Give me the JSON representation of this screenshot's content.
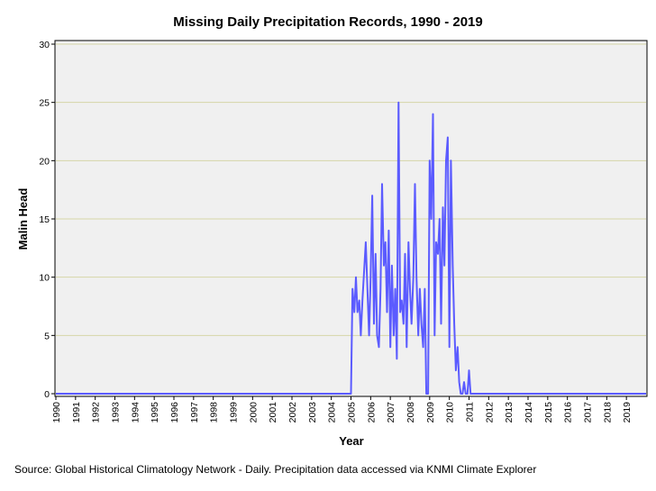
{
  "chart_data": {
    "type": "line",
    "title": "Missing Daily Precipitation Records, 1990 - 2019",
    "xlabel": "Year",
    "ylabel": "Malin Head",
    "ylim": [
      0,
      30
    ],
    "xlim": [
      1990,
      2020
    ],
    "yticks": [
      0,
      5,
      10,
      15,
      20,
      25,
      30
    ],
    "xtick_labels": [
      "1990",
      "1991",
      "1992",
      "1993",
      "1994",
      "1995",
      "1996",
      "1997",
      "1998",
      "1999",
      "2000",
      "2001",
      "2002",
      "2003",
      "2004",
      "2005",
      "2006",
      "2007",
      "2008",
      "2009",
      "2010",
      "2011",
      "2012",
      "2013",
      "2014",
      "2015",
      "2016",
      "2017",
      "2018",
      "2019"
    ],
    "grid": true,
    "series": [
      {
        "name": "Malin Head",
        "color": "#5b5bff",
        "x": [
          1990.0,
          2005.0,
          2005.08,
          2005.17,
          2005.25,
          2005.33,
          2005.42,
          2005.5,
          2005.58,
          2005.75,
          2005.92,
          2006.0,
          2006.08,
          2006.17,
          2006.25,
          2006.33,
          2006.42,
          2006.5,
          2006.58,
          2006.67,
          2006.75,
          2006.83,
          2006.92,
          2007.0,
          2007.08,
          2007.17,
          2007.25,
          2007.33,
          2007.42,
          2007.5,
          2007.58,
          2007.67,
          2007.75,
          2007.83,
          2007.92,
          2008.0,
          2008.08,
          2008.17,
          2008.25,
          2008.33,
          2008.42,
          2008.5,
          2008.58,
          2008.67,
          2008.75,
          2008.83,
          2008.92,
          2009.0,
          2009.08,
          2009.17,
          2009.25,
          2009.33,
          2009.42,
          2009.5,
          2009.58,
          2009.67,
          2009.75,
          2009.83,
          2009.92,
          2010.0,
          2010.08,
          2010.17,
          2010.25,
          2010.33,
          2010.42,
          2010.5,
          2010.58,
          2010.67,
          2010.75,
          2010.83,
          2010.92,
          2011.0,
          2011.08,
          2011.17,
          2011.25,
          2011.33,
          2011.42,
          2011.5,
          2011.58,
          2011.67,
          2011.75,
          2011.83,
          2011.92,
          2012.0,
          2012.08,
          2012.17,
          2012.25,
          2012.33,
          2012.42,
          2012.5,
          2020.0
        ],
        "values": [
          0,
          0,
          9,
          7,
          10,
          7,
          8,
          5,
          8,
          13,
          5,
          10,
          17,
          6,
          12,
          5,
          4,
          9,
          18,
          11,
          13,
          7,
          14,
          4,
          11,
          5,
          9,
          3,
          25,
          7,
          8,
          6,
          12,
          4,
          13,
          9,
          6,
          10,
          18,
          10,
          5,
          9,
          6,
          4,
          9,
          0,
          0,
          20,
          15,
          24,
          5,
          13,
          12,
          15,
          6,
          16,
          11,
          20,
          22,
          4,
          20,
          11,
          6,
          2,
          4,
          1,
          0,
          0,
          1,
          0,
          0,
          2,
          0,
          0,
          0,
          0,
          0,
          0,
          0,
          0,
          0,
          0,
          0,
          0,
          0,
          0,
          0,
          0,
          0,
          0,
          0
        ]
      }
    ]
  },
  "source_text": "Source: Global Historical Climatology Network - Daily. Precipitation data accessed via KNMI Climate Explorer"
}
